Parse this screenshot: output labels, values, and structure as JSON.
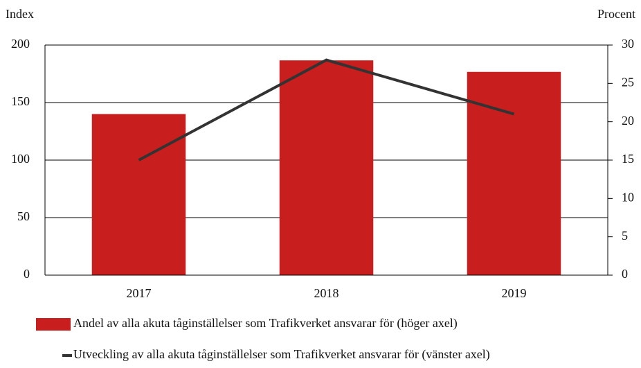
{
  "chart_data": {
    "type": "bar_line",
    "y_axis_label": "Index",
    "y2_axis_label": "Procent",
    "categories": [
      "2017",
      "2018",
      "2019"
    ],
    "series": [
      {
        "name": "Andel av alla akuta tåginställelser som Trafikverket ansvarar för (höger axel)",
        "type": "bar",
        "axis": "y2",
        "color": "#c81e1e",
        "values": [
          21,
          28,
          26.5
        ]
      },
      {
        "name": "Utveckling av alla akuta tåginställelser som Trafikverket ansvarar för (vänster axel)",
        "type": "line",
        "axis": "y",
        "color": "#333333",
        "values": [
          100,
          187,
          140
        ]
      }
    ],
    "ylim": [
      0,
      200
    ],
    "yticks": [
      0,
      50,
      100,
      150,
      200
    ],
    "y2lim": [
      0,
      30
    ],
    "y2ticks": [
      0,
      5,
      10,
      15,
      20,
      25,
      30
    ],
    "grid": true
  }
}
